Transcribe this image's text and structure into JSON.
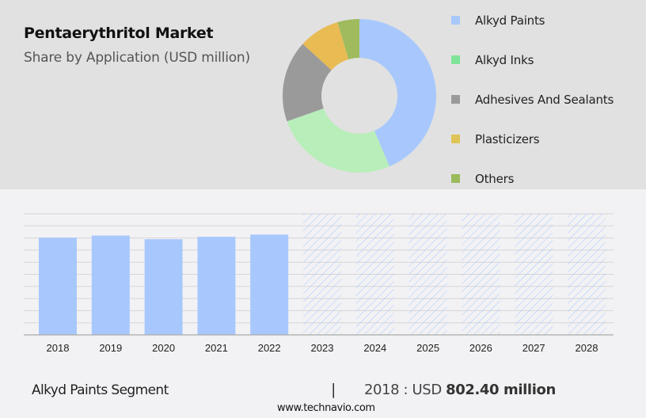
{
  "header": {
    "title": "Pentaerythritol Market",
    "subtitle": "Share by Application (USD million)"
  },
  "legend": [
    {
      "label": "Alkyd Paints",
      "color": "#a8c8fd"
    },
    {
      "label": "Alkyd Inks",
      "color": "#7fe39a"
    },
    {
      "label": "Adhesives And Sealants",
      "color": "#9a9a9a"
    },
    {
      "label": "Plasticizers",
      "color": "#e0c356"
    },
    {
      "label": "Others",
      "color": "#9bba5c"
    }
  ],
  "footer": {
    "segment": "Alkyd Paints Segment",
    "separator": "|",
    "value_prefix": "2018 : USD ",
    "value_bold": "802.40 million",
    "url": "www.technavio.com"
  },
  "chart_data": [
    {
      "type": "pie",
      "title": "Pentaerythritol Market",
      "subtitle": "Share by Application (USD million)",
      "donut": true,
      "categories": [
        "Alkyd Paints",
        "Alkyd Inks",
        "Adhesives And Sealants",
        "Plasticizers",
        "Others"
      ],
      "values": [
        43.6,
        26.0,
        17.2,
        8.6,
        4.6
      ],
      "colors": [
        "#a8c8fd",
        "#b8eeb9",
        "#9a9a9a",
        "#e8bb53",
        "#9fbb5e"
      ],
      "legend_position": "right"
    },
    {
      "type": "bar",
      "title": "Alkyd Paints Segment",
      "categories": [
        "2018",
        "2019",
        "2020",
        "2021",
        "2022",
        "2023",
        "2024",
        "2025",
        "2026",
        "2027",
        "2028"
      ],
      "values": [
        802.4,
        820,
        790,
        810,
        828,
        null,
        null,
        null,
        null,
        null,
        null
      ],
      "forecast_years": [
        "2023",
        "2024",
        "2025",
        "2026",
        "2027",
        "2028"
      ],
      "forecast_style": "hatched",
      "bar_color": "#a8c8fd",
      "xlabel": "",
      "ylabel": "",
      "ylim": [
        0,
        1000
      ],
      "grid": true,
      "annotation": "2018 : USD 802.40 million"
    }
  ]
}
